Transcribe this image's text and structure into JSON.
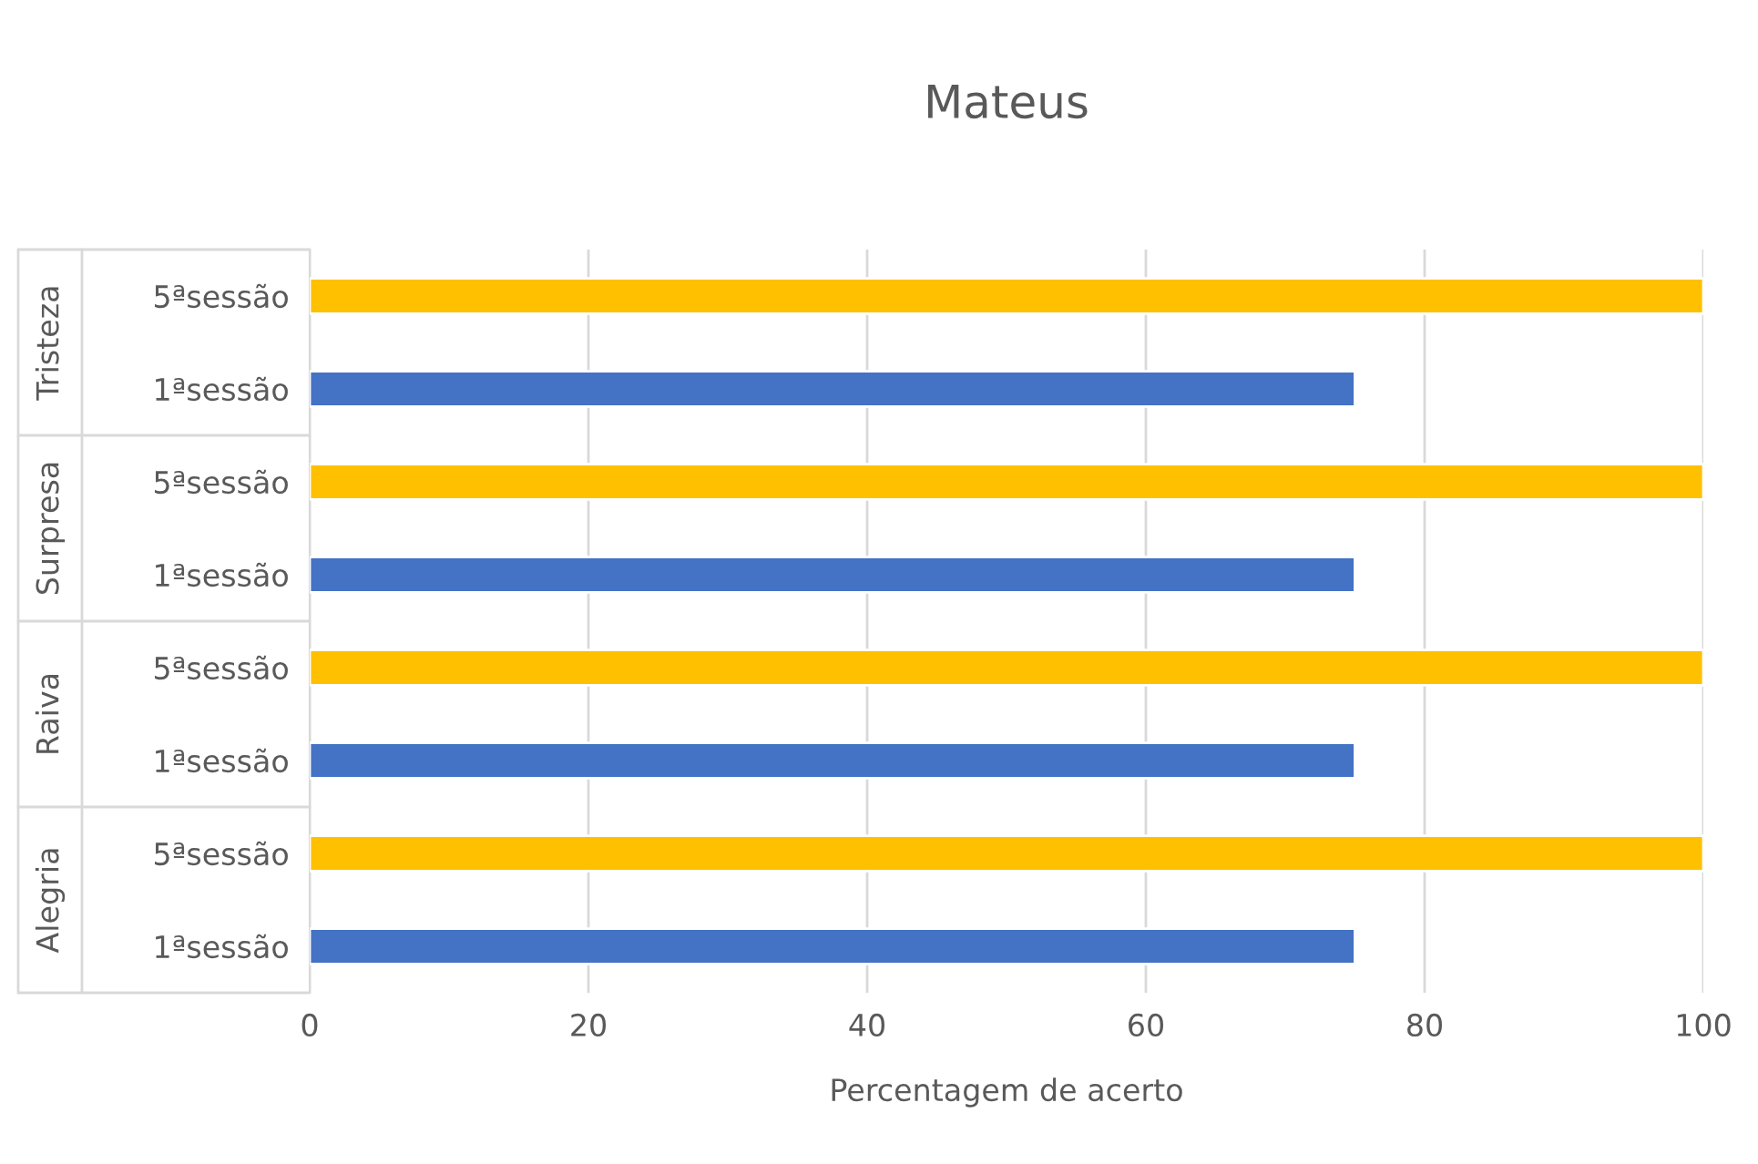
{
  "chart_data": {
    "type": "bar",
    "orientation": "horizontal",
    "title": "Mateus",
    "xlabel": "Percentagem de acerto",
    "categories": [
      "5ªsessão",
      "1ªsessão",
      "5ªsessão",
      "1ªsessão",
      "5ªsessão",
      "1ªsessão",
      "5ªsessão",
      "1ªsessão"
    ],
    "values": [
      100,
      75,
      100,
      75,
      100,
      75,
      100,
      75
    ],
    "colors": [
      "#ffc000",
      "#4472c4",
      "#ffc000",
      "#4472c4",
      "#ffc000",
      "#4472c4",
      "#ffc000",
      "#4472c4"
    ],
    "annotations": [
      "Tristeza",
      "Surpresa",
      "Raiva",
      "Alegria"
    ],
    "xlim": [
      0,
      100
    ],
    "xticks": [
      0,
      20,
      40,
      60,
      80,
      100
    ],
    "grid": "x"
  }
}
